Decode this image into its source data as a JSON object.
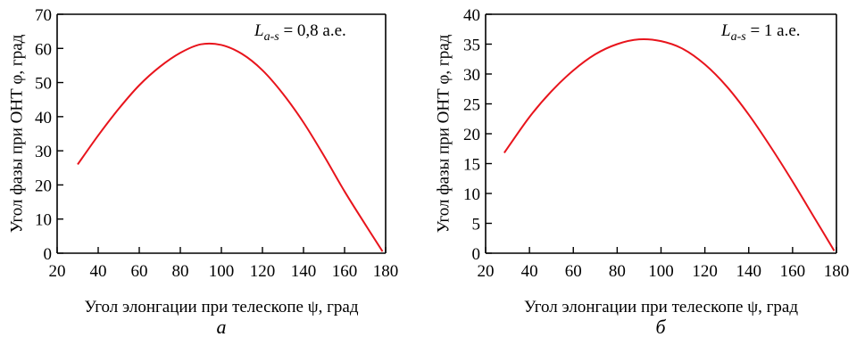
{
  "chart_data": [
    {
      "type": "line",
      "panel_label": "а",
      "xlabel": "Угол элонгации при телескопе ψ, град",
      "ylabel": "Угол фазы при ОНТ φ, град",
      "xlim": [
        20,
        180
      ],
      "ylim": [
        0,
        70
      ],
      "xticks": [
        20,
        40,
        60,
        80,
        100,
        120,
        140,
        160,
        180
      ],
      "yticks": [
        0,
        10,
        20,
        30,
        40,
        50,
        60,
        70
      ],
      "annotation": {
        "symbol": "L",
        "subscript": "a-s",
        "value": " = 0,8 а.е."
      },
      "grid": false,
      "line_color": "#e8141c",
      "series": [
        {
          "x": [
            30,
            40,
            50,
            60,
            70,
            80,
            90,
            100,
            110,
            120,
            130,
            140,
            150,
            160,
            170,
            178.5
          ],
          "y": [
            26,
            34.5,
            42.3,
            49.2,
            54.6,
            58.7,
            61.2,
            61,
            58.4,
            53.6,
            46.7,
            38.3,
            28.5,
            18.1,
            8.5,
            0.5
          ]
        }
      ]
    },
    {
      "type": "line",
      "panel_label": "б",
      "xlabel": "Угол элонгации при телескопе ψ, град",
      "ylabel": "Угол фазы при ОНТ φ, град",
      "xlim": [
        20,
        180
      ],
      "ylim": [
        0,
        40
      ],
      "xticks": [
        20,
        40,
        60,
        80,
        100,
        120,
        140,
        160,
        180
      ],
      "yticks": [
        0,
        5,
        10,
        15,
        20,
        25,
        30,
        35,
        40
      ],
      "annotation": {
        "symbol": "L",
        "subscript": "a-s",
        "value": " = 1 а.е."
      },
      "grid": false,
      "line_color": "#e8141c",
      "series": [
        {
          "x": [
            28.5,
            40,
            50,
            60,
            70,
            80,
            90,
            100,
            110,
            120,
            130,
            140,
            150,
            160,
            170,
            179
          ],
          "y": [
            16.8,
            22.8,
            27.1,
            30.6,
            33.3,
            35.0,
            35.8,
            35.5,
            34.2,
            31.6,
            27.9,
            23.2,
            17.8,
            12.0,
            5.9,
            0.4
          ]
        }
      ]
    }
  ]
}
